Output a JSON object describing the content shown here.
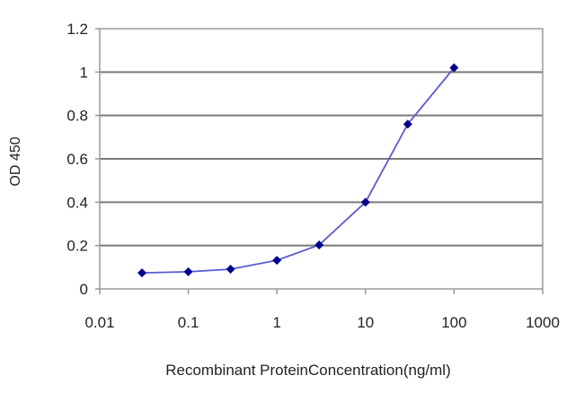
{
  "chart_data": {
    "type": "line",
    "title": "",
    "xlabel": "Recombinant ProteinConcentration(ng/ml)",
    "ylabel": "OD 450",
    "x_scale": "log",
    "xlim": [
      0.01,
      1000
    ],
    "ylim": [
      0,
      1.2
    ],
    "x_ticks": [
      "0.01",
      "0.1",
      "1",
      "10",
      "100",
      "1000"
    ],
    "y_ticks": [
      "0",
      "0.2",
      "0.4",
      "0.6",
      "0.8",
      "1",
      "1.2"
    ],
    "grid": "horizontal",
    "legend": "none",
    "series": [
      {
        "color": "#00008b",
        "line_color": "#5a5ad0",
        "marker": "diamond",
        "x": [
          0.03,
          0.1,
          0.3,
          1,
          3,
          10,
          30,
          100
        ],
        "y": [
          0.074,
          0.079,
          0.091,
          0.132,
          0.203,
          0.4,
          0.76,
          1.02
        ]
      }
    ]
  }
}
